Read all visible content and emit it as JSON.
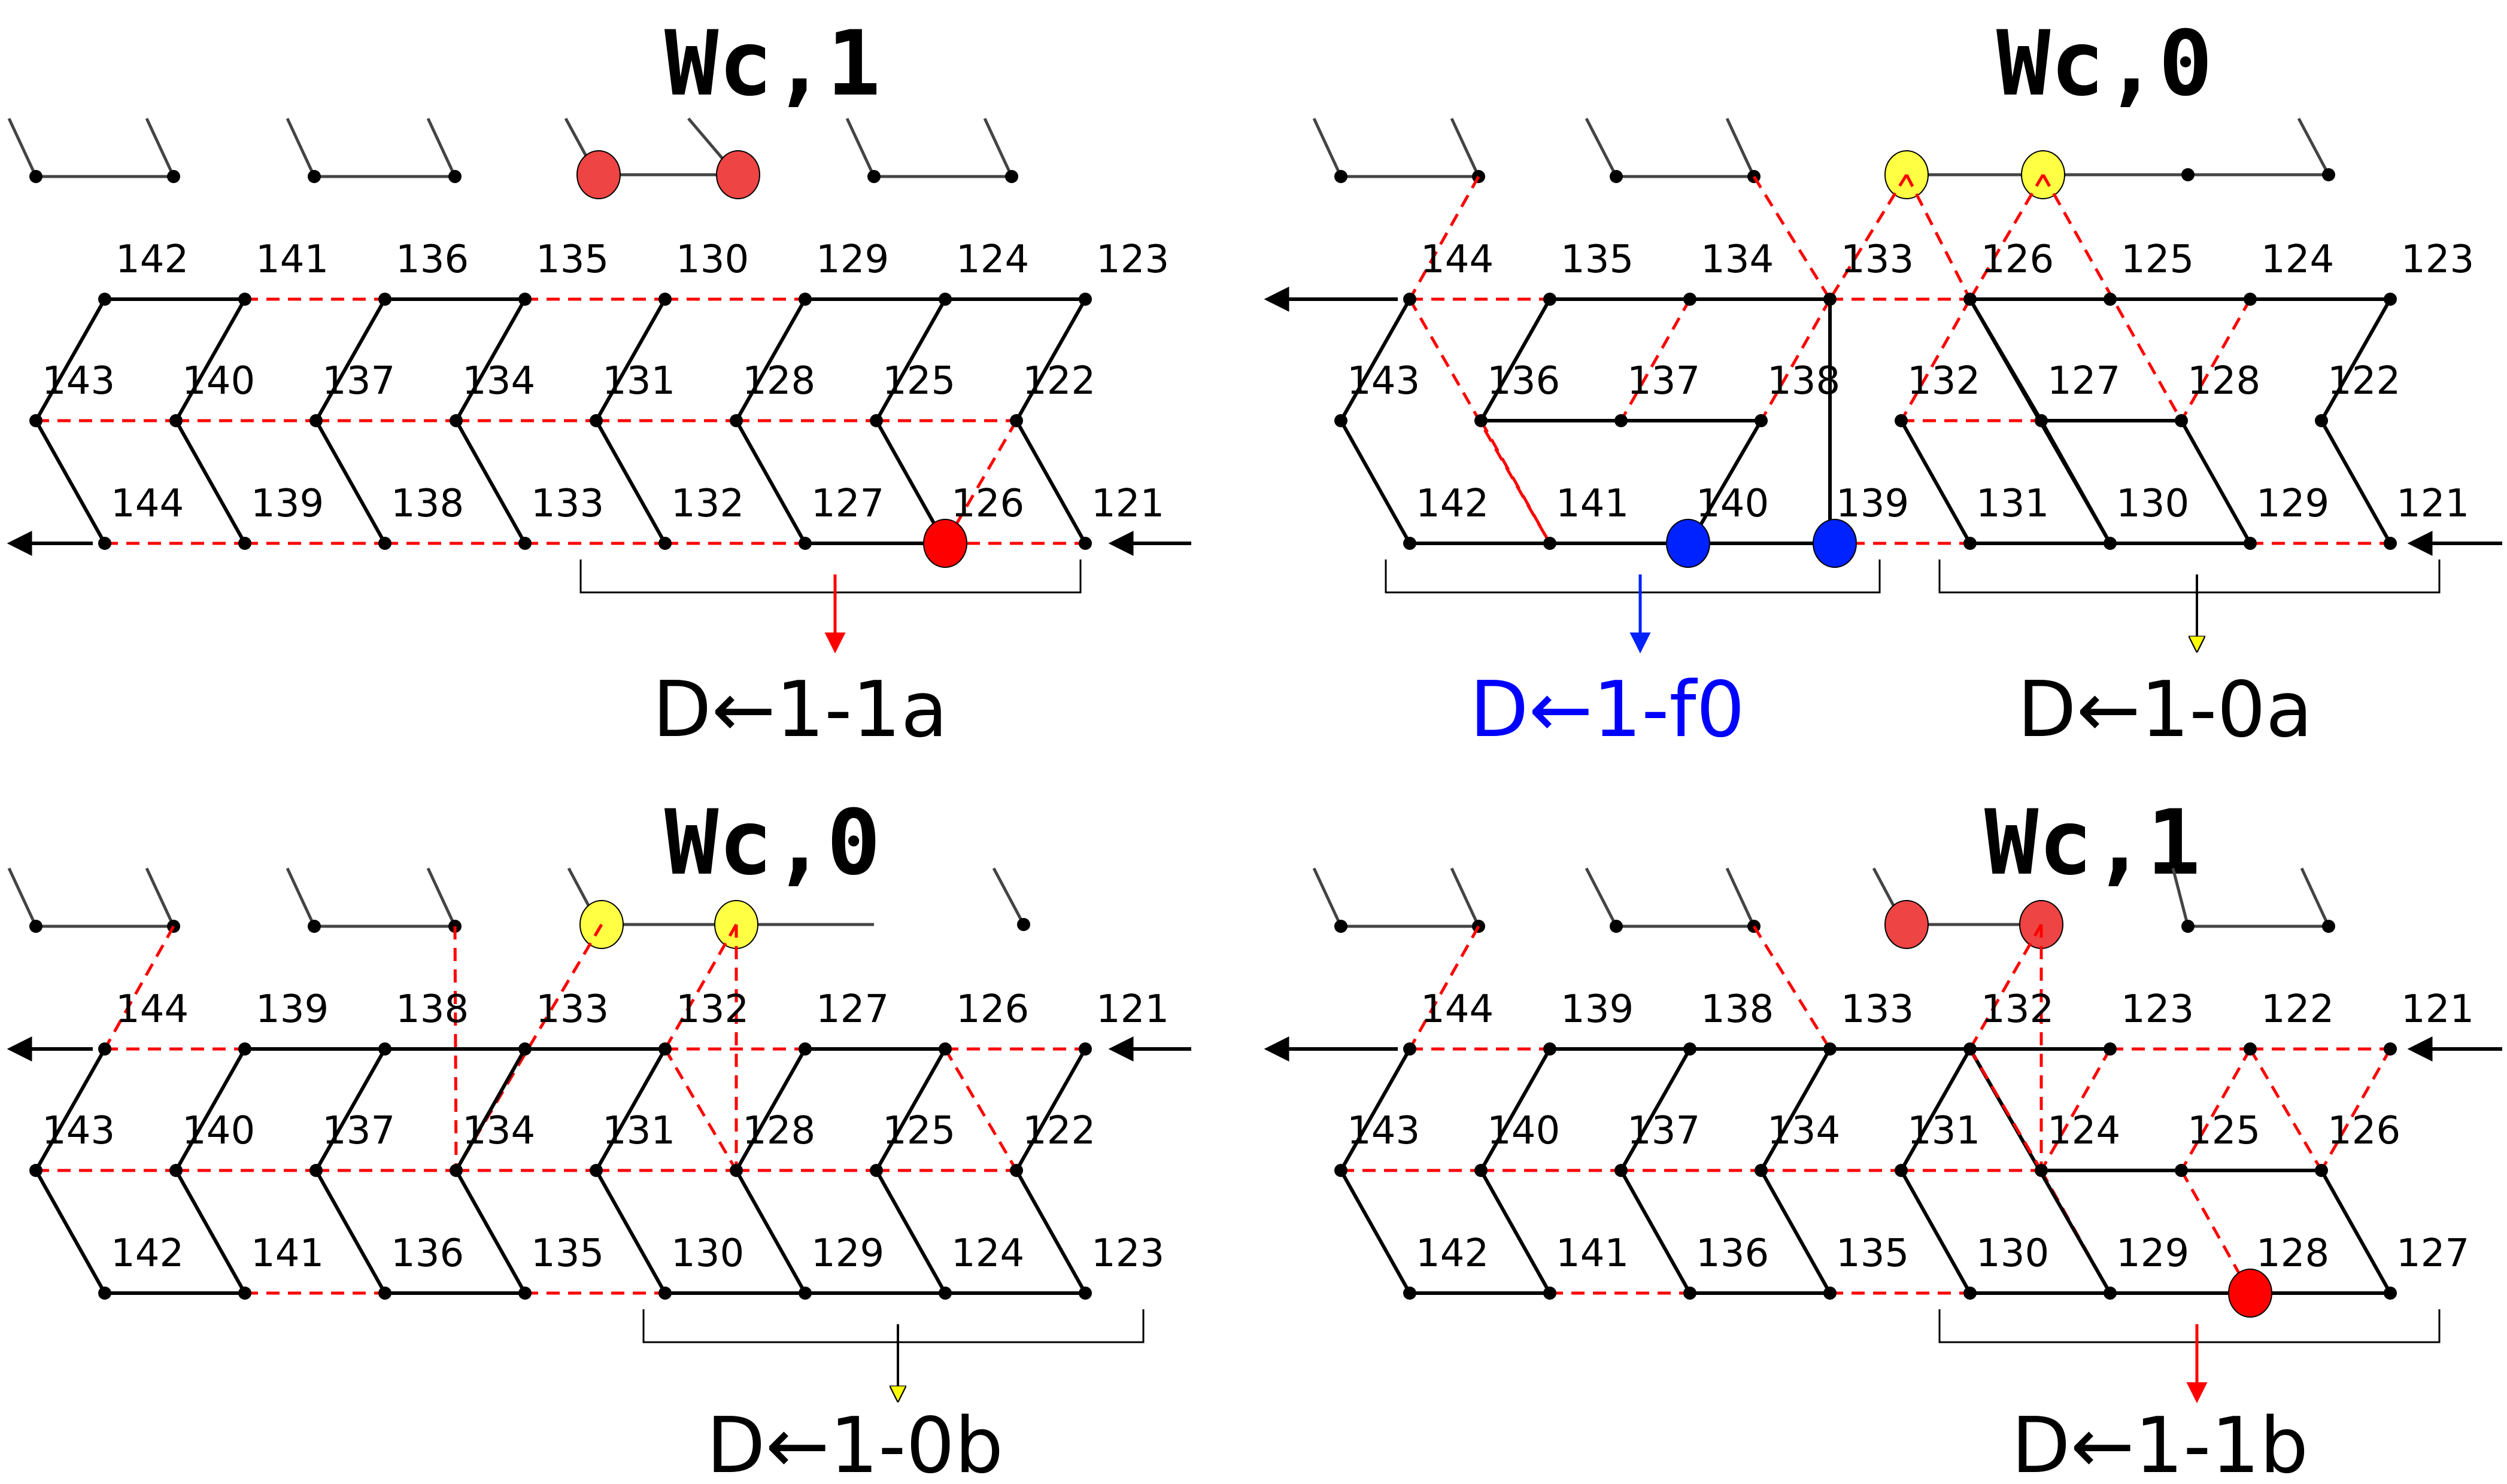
{
  "colors": {
    "solid_bond": "#000000",
    "dashed_bond": "#ff0000",
    "red_marker": "#ff0000",
    "red_light_marker": "#ee4444",
    "yellow_marker": "#ffff44",
    "blue_marker": "#0022ff",
    "label_blue": "#0000ff",
    "defect_label": "#000000"
  },
  "panels": [
    {
      "id": "top-left",
      "title": "Wc,1",
      "top_row": [
        "142",
        "141",
        "136",
        "135",
        "130",
        "129",
        "124",
        "123"
      ],
      "mid_row": [
        "143",
        "140",
        "137",
        "134",
        "131",
        "128",
        "125",
        "122"
      ],
      "bot_row": [
        "144",
        "139",
        "138",
        "133",
        "132",
        "127",
        "126",
        "121"
      ],
      "defect_label": "D←1-1a",
      "defect_color": "red",
      "marker_color": "red"
    },
    {
      "id": "top-right",
      "title": "Wc,0",
      "top_row": [
        "144",
        "135",
        "134",
        "133",
        "126",
        "125",
        "124",
        "123"
      ],
      "mid_row": [
        "143",
        "136",
        "137",
        "138",
        "132",
        "127",
        "128",
        "122"
      ],
      "bot_row": [
        "142",
        "141",
        "140",
        "139",
        "131",
        "130",
        "129",
        "121"
      ],
      "defect_labels": [
        "D←1-f0",
        "D←1-0a"
      ],
      "marker_colors": [
        "yellow",
        "blue"
      ]
    },
    {
      "id": "bottom-left",
      "title": "Wc,0",
      "top_row": [
        "144",
        "139",
        "138",
        "133",
        "132",
        "127",
        "126",
        "121"
      ],
      "mid_row": [
        "143",
        "140",
        "137",
        "134",
        "131",
        "128",
        "125",
        "122"
      ],
      "bot_row": [
        "142",
        "141",
        "136",
        "135",
        "130",
        "129",
        "124",
        "123"
      ],
      "defect_label": "D←1-0b",
      "marker_color": "yellow"
    },
    {
      "id": "bottom-right",
      "title": "Wc,1",
      "top_row": [
        "144",
        "139",
        "138",
        "133",
        "132",
        "123",
        "122",
        "121"
      ],
      "mid_row": [
        "143",
        "140",
        "137",
        "134",
        "131",
        "124",
        "125",
        "126"
      ],
      "bot_row": [
        "142",
        "141",
        "136",
        "135",
        "130",
        "129",
        "128",
        "127"
      ],
      "defect_label": "D←1-1b",
      "marker_color": "red"
    }
  ]
}
